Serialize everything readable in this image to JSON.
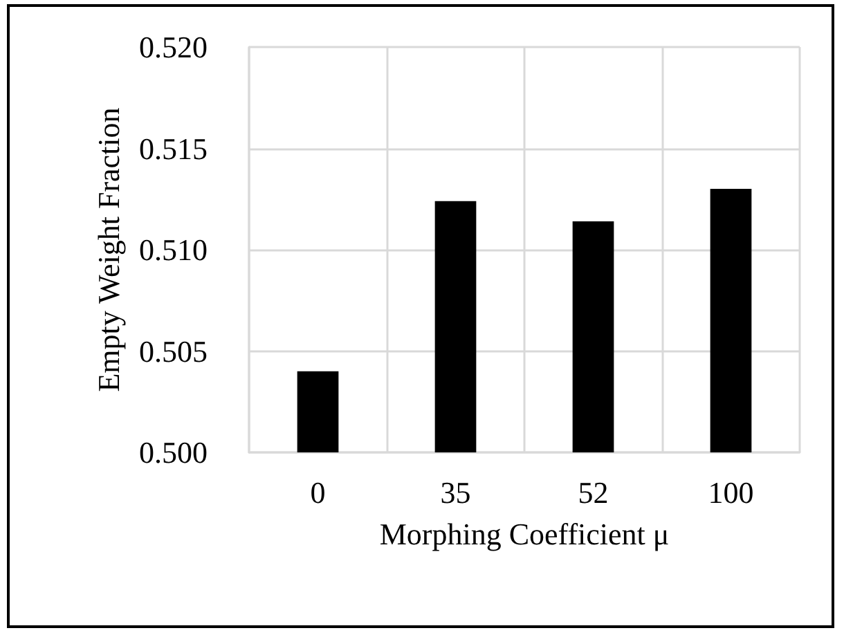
{
  "chart_data": {
    "type": "bar",
    "xlabel": "Morphing Coefficient μ",
    "ylabel": "Empty Weight Fraction",
    "categories": [
      "0",
      "35",
      "52",
      "100"
    ],
    "values": [
      0.504,
      0.5124,
      0.5114,
      0.513
    ],
    "color": "#000000",
    "ylim": [
      0.5,
      0.52
    ],
    "yticks": [
      {
        "value": 0.5,
        "label": "0.500"
      },
      {
        "value": 0.505,
        "label": "0.505"
      },
      {
        "value": 0.51,
        "label": "0.510"
      },
      {
        "value": 0.515,
        "label": "0.515"
      },
      {
        "value": 0.52,
        "label": "0.520"
      }
    ],
    "grid": true
  }
}
